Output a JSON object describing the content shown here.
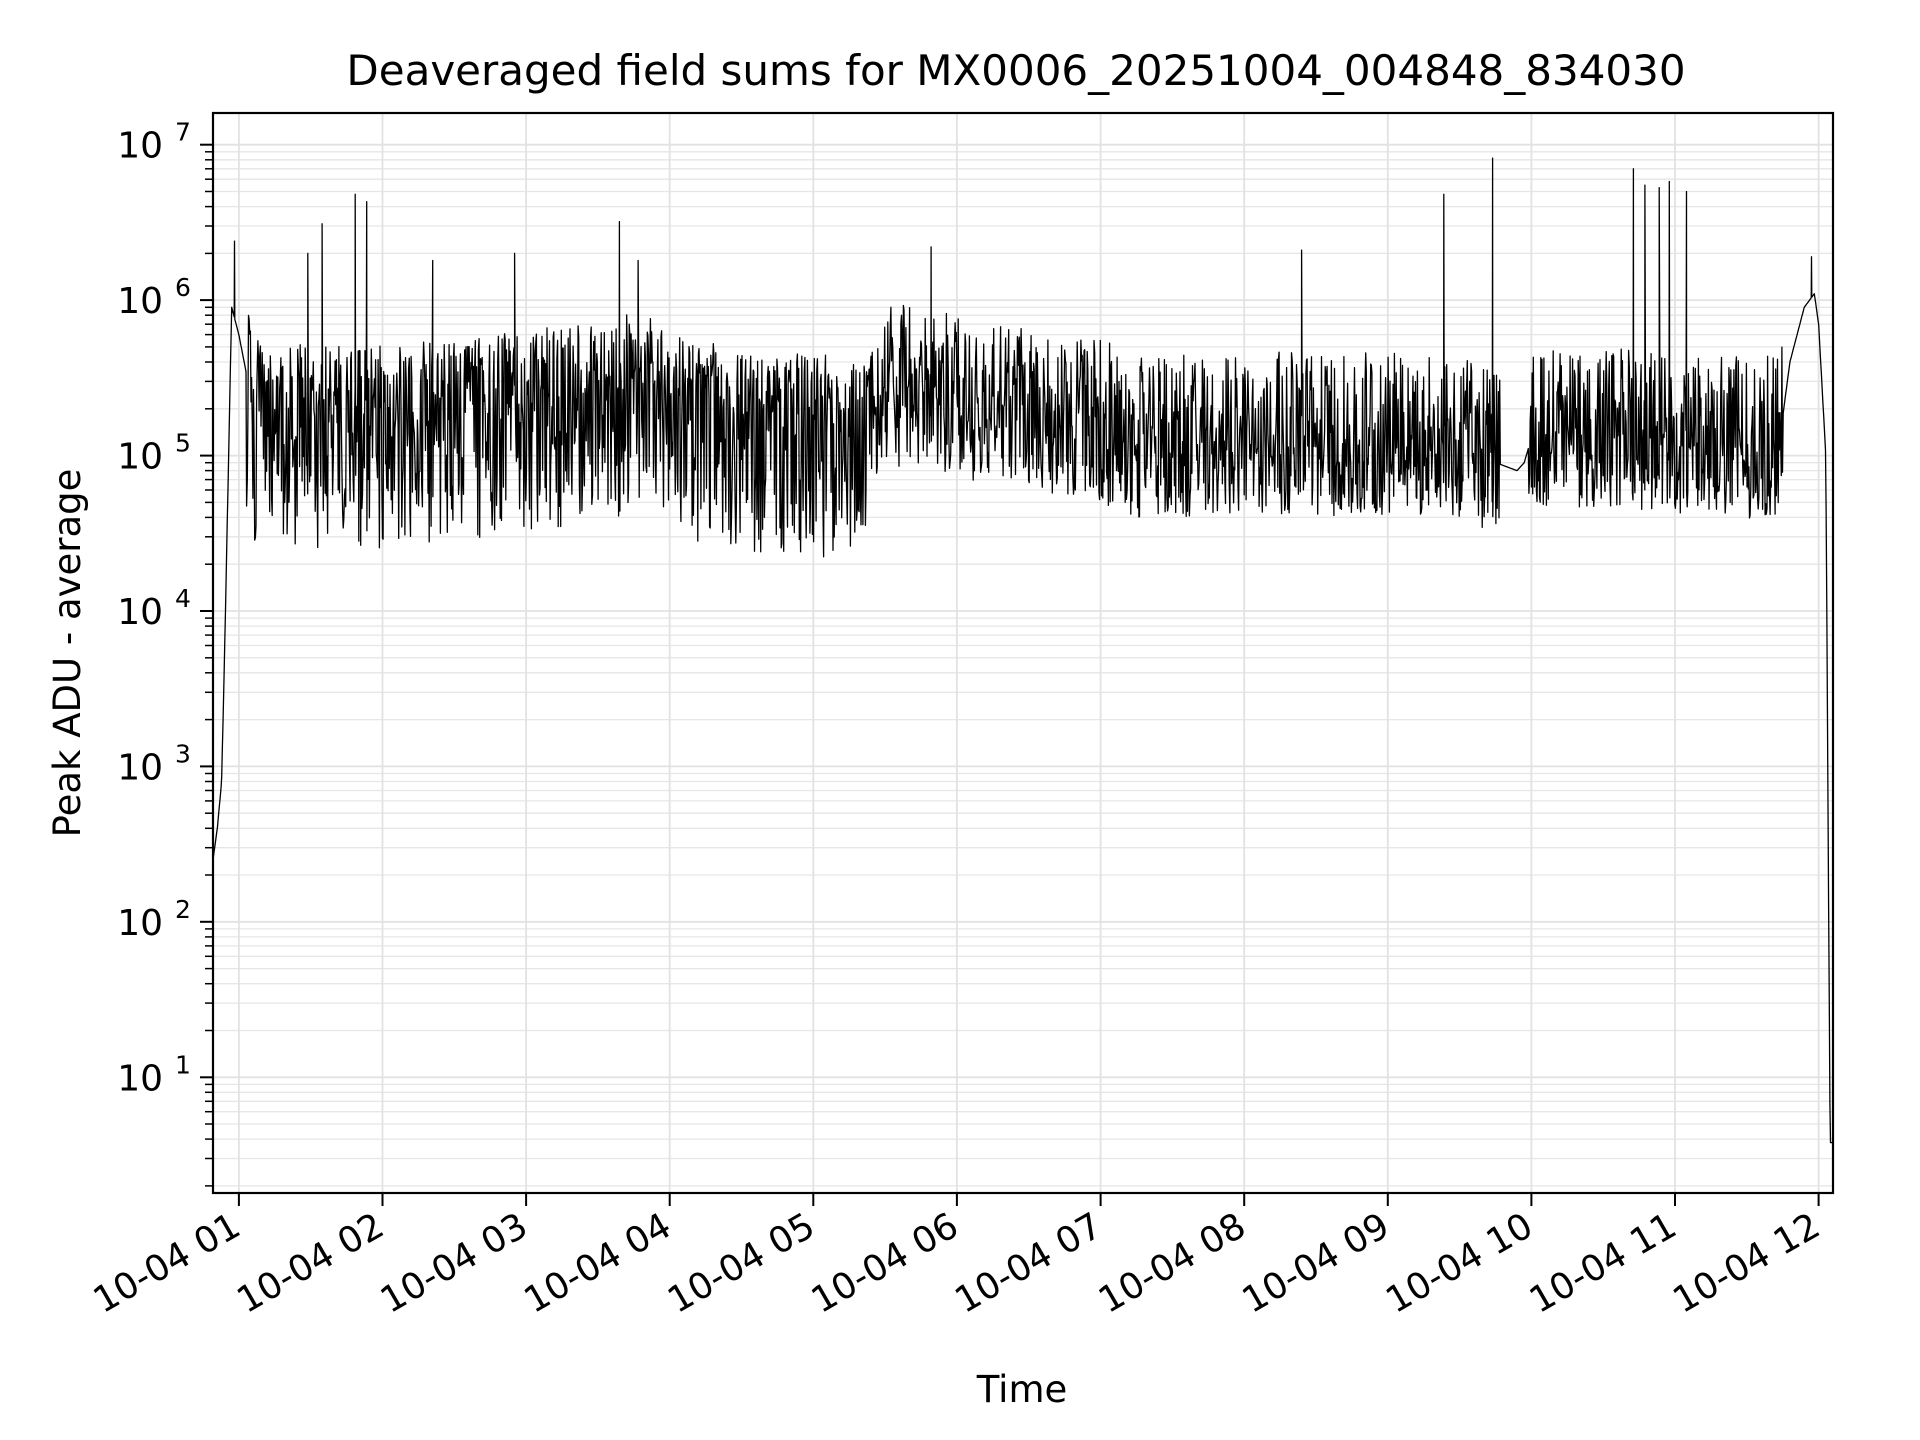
{
  "chart_data": {
    "type": "line",
    "title": "Deaveraged field sums for MX0006_20251004_004848_834030",
    "xlabel": "Time",
    "ylabel": "Peak ADU - average",
    "yscale": "log",
    "ylim": [
      1.8,
      16000000
    ],
    "xlim_hours": [
      0.82,
      12.1
    ],
    "grid": true,
    "grid_minor": true,
    "line_color": "#000000",
    "x_tick_labels": [
      "10-04 01",
      "10-04 02",
      "10-04 03",
      "10-04 04",
      "10-04 05",
      "10-04 06",
      "10-04 07",
      "10-04 08",
      "10-04 09",
      "10-04 10",
      "10-04 11",
      "10-04 12"
    ],
    "y_tick_labels": [
      {
        "base": "10",
        "exp": "1",
        "value": 10
      },
      {
        "base": "10",
        "exp": "2",
        "value": 100
      },
      {
        "base": "10",
        "exp": "3",
        "value": 1000
      },
      {
        "base": "10",
        "exp": "4",
        "value": 10000
      },
      {
        "base": "10",
        "exp": "5",
        "value": 100000
      },
      {
        "base": "10",
        "exp": "6",
        "value": 1000000
      },
      {
        "base": "10",
        "exp": "7",
        "value": 10000000
      }
    ],
    "series": [
      {
        "name": "Peak ADU - average",
        "baseline_profile": {
          "hours": [
            0.82,
            0.85,
            0.88,
            0.9,
            0.95,
            1.0,
            1.1,
            1.5,
            2.0,
            2.5,
            3.0,
            3.5,
            3.8,
            4.0,
            4.5,
            5.0,
            5.3,
            5.5,
            6.0,
            6.5,
            7.0,
            7.3,
            7.5,
            8.0,
            8.5,
            9.0,
            9.5,
            9.9,
            9.95,
            10.0,
            10.5,
            11.0,
            11.5,
            11.72,
            11.8,
            11.9,
            11.97,
            12.0,
            12.05,
            12.08,
            12.1
          ],
          "values": [
            250,
            400,
            800,
            5000,
            900000,
            600000,
            200000,
            180000,
            180000,
            200000,
            230000,
            260000,
            320000,
            220000,
            170000,
            160000,
            150000,
            250000,
            200000,
            170000,
            140000,
            110000,
            110000,
            120000,
            115000,
            115000,
            110000,
            80000,
            90000,
            130000,
            130000,
            120000,
            110000,
            110000,
            400000,
            900000,
            1100000,
            700000,
            100000,
            3.8,
            3.8
          ]
        },
        "noise_spread": "lower excursions to ~2.5e4-5e4 between 01:00 and 05:30; to ~5e4-7e4 after 06:00",
        "spikes": [
          {
            "hour": 0.97,
            "value": 2400000
          },
          {
            "hour": 1.48,
            "value": 2000000
          },
          {
            "hour": 1.58,
            "value": 3100000
          },
          {
            "hour": 1.81,
            "value": 4800000
          },
          {
            "hour": 1.89,
            "value": 4300000
          },
          {
            "hour": 2.35,
            "value": 1800000
          },
          {
            "hour": 2.92,
            "value": 2000000
          },
          {
            "hour": 3.65,
            "value": 3200000
          },
          {
            "hour": 3.78,
            "value": 1800000
          },
          {
            "hour": 5.82,
            "value": 2200000
          },
          {
            "hour": 8.4,
            "value": 2100000
          },
          {
            "hour": 9.39,
            "value": 4800000
          },
          {
            "hour": 9.73,
            "value": 8200000
          },
          {
            "hour": 10.71,
            "value": 7000000
          },
          {
            "hour": 10.79,
            "value": 5500000
          },
          {
            "hour": 10.89,
            "value": 5300000
          },
          {
            "hour": 10.96,
            "value": 5800000
          },
          {
            "hour": 11.08,
            "value": 5000000
          },
          {
            "hour": 11.95,
            "value": 1900000
          }
        ]
      }
    ]
  }
}
